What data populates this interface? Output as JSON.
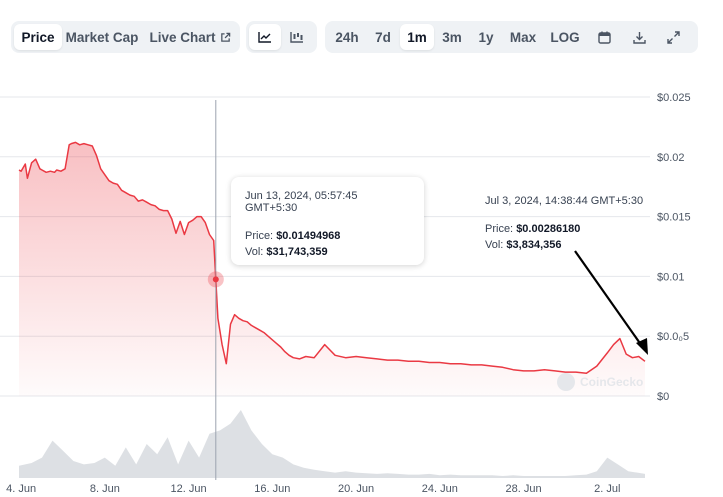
{
  "toolbar": {
    "tabs": [
      {
        "label": "Price",
        "active": true
      },
      {
        "label": "Market Cap",
        "active": false
      },
      {
        "label": "Live Chart",
        "active": false
      }
    ],
    "chart_types": [
      "line-chart-icon",
      "candlestick-icon"
    ],
    "ranges": [
      {
        "label": "24h",
        "active": false
      },
      {
        "label": "7d",
        "active": false
      },
      {
        "label": "1m",
        "active": true
      },
      {
        "label": "3m",
        "active": false
      },
      {
        "label": "1y",
        "active": false
      },
      {
        "label": "Max",
        "active": false
      },
      {
        "label": "LOG",
        "active": false
      }
    ],
    "tools": [
      "calendar-icon",
      "download-icon",
      "fullscreen-icon"
    ]
  },
  "tooltip_main": {
    "date": "Jun 13, 2024, 05:57:45 GMT+5:30",
    "price_label": "Price:",
    "price": "$0.01494968",
    "vol_label": "Vol:",
    "vol": "$31,743,359"
  },
  "tooltip_second": {
    "date": "Jul 3, 2024, 14:38:44 GMT+5:30",
    "price_label": "Price:",
    "price": "$0.00286180",
    "vol_label": "Vol:",
    "vol": "$3,834,356"
  },
  "watermark": "CoinGecko",
  "colors": {
    "line": "#ea3943",
    "volume": "#d1d5db",
    "accent_text": "#111827"
  },
  "chart_data": {
    "type": "area",
    "x_unit": "days since Jun 4, 2024",
    "y_ticks": [
      "$0",
      "$0.0₀5",
      "$0.01",
      "$0.015",
      "$0.02",
      "$0.025"
    ],
    "y_tick_values": [
      0,
      0.005,
      0.01,
      0.015,
      0.02,
      0.025
    ],
    "ylim": [
      0,
      0.025
    ],
    "x_ticks": [
      "4. Jun",
      "8. Jun",
      "12. Jun",
      "16. Jun",
      "20. Jun",
      "24. Jun",
      "28. Jun",
      "2. Jul"
    ],
    "x_tick_values": [
      0,
      4,
      8,
      12,
      16,
      20,
      24,
      28
    ],
    "xlim": [
      -0.1,
      29.8
    ],
    "grid": true,
    "legend": "none",
    "series": [
      {
        "name": "Price",
        "x": [
          -0.1,
          0.0,
          0.2,
          0.3,
          0.5,
          0.7,
          0.9,
          1.0,
          1.2,
          1.4,
          1.6,
          1.7,
          1.9,
          2.1,
          2.3,
          2.4,
          2.6,
          2.8,
          3.0,
          3.2,
          3.4,
          3.6,
          3.8,
          4.0,
          4.2,
          4.4,
          4.6,
          4.8,
          5.0,
          5.2,
          5.4,
          5.6,
          5.8,
          6.0,
          6.2,
          6.4,
          6.6,
          6.8,
          7.0,
          7.2,
          7.4,
          7.6,
          7.8,
          8.0,
          8.2,
          8.4,
          8.6,
          8.8,
          9.0,
          9.2,
          9.4,
          9.6,
          9.8,
          10.0,
          10.2,
          10.4,
          10.6,
          10.8,
          11.0,
          11.2,
          11.4,
          11.6,
          11.8,
          12.0,
          12.2,
          12.4,
          12.6,
          12.8,
          13.0,
          13.3,
          13.6,
          14.0,
          14.5,
          15.0,
          15.5,
          16.0,
          16.5,
          17.0,
          17.5,
          18.0,
          18.5,
          19.0,
          19.5,
          20.0,
          20.5,
          21.0,
          21.5,
          22.0,
          22.5,
          23.0,
          23.5,
          24.0,
          24.5,
          25.0,
          25.5,
          26.0,
          26.5,
          27.0,
          27.5,
          28.0,
          28.3,
          28.6,
          28.9,
          29.2,
          29.5,
          29.8
        ],
        "y": [
          0.0189,
          0.0188,
          0.0194,
          0.0182,
          0.0195,
          0.0198,
          0.019,
          0.0189,
          0.0187,
          0.0188,
          0.0187,
          0.0189,
          0.0188,
          0.019,
          0.021,
          0.0211,
          0.0212,
          0.021,
          0.0211,
          0.021,
          0.0209,
          0.0201,
          0.019,
          0.0185,
          0.018,
          0.0178,
          0.0177,
          0.0172,
          0.017,
          0.0168,
          0.0167,
          0.0163,
          0.0164,
          0.0162,
          0.016,
          0.0159,
          0.0156,
          0.0155,
          0.0155,
          0.0148,
          0.0136,
          0.0146,
          0.0135,
          0.0145,
          0.0147,
          0.015,
          0.015,
          0.0145,
          0.0135,
          0.013,
          0.0065,
          0.0043,
          0.0027,
          0.006,
          0.0068,
          0.0065,
          0.0063,
          0.0062,
          0.0059,
          0.0057,
          0.0055,
          0.0053,
          0.005,
          0.0047,
          0.0044,
          0.0041,
          0.0037,
          0.0034,
          0.0032,
          0.0031,
          0.0033,
          0.0032,
          0.0043,
          0.0034,
          0.0032,
          0.0033,
          0.0032,
          0.0031,
          0.003,
          0.003,
          0.0029,
          0.0029,
          0.0028,
          0.0028,
          0.0027,
          0.0027,
          0.0026,
          0.0026,
          0.0025,
          0.0024,
          0.0022,
          0.0021,
          0.0021,
          0.0022,
          0.0021,
          0.002,
          0.002,
          0.0019,
          0.0025,
          0.0036,
          0.0043,
          0.0048,
          0.0035,
          0.0032,
          0.0033,
          0.0029
        ]
      },
      {
        "name": "Vol",
        "x": [
          -0.1,
          0.5,
          1.0,
          1.5,
          2.0,
          2.5,
          3.0,
          3.5,
          4.0,
          4.5,
          5.0,
          5.5,
          6.0,
          6.5,
          7.0,
          7.5,
          8.0,
          8.5,
          9.0,
          9.5,
          10.0,
          10.5,
          11.0,
          11.5,
          12.0,
          12.5,
          13.0,
          13.5,
          14.0,
          14.5,
          15.0,
          15.5,
          16.0,
          16.5,
          17.0,
          17.5,
          18.0,
          18.5,
          19.0,
          19.5,
          20.0,
          20.5,
          21.0,
          21.5,
          22.0,
          22.5,
          23.0,
          23.5,
          24.0,
          24.5,
          25.0,
          25.5,
          26.0,
          26.5,
          27.0,
          27.5,
          28.0,
          28.5,
          29.0,
          29.8
        ],
        "y": [
          0.18,
          0.22,
          0.3,
          0.55,
          0.4,
          0.25,
          0.2,
          0.22,
          0.3,
          0.18,
          0.45,
          0.2,
          0.5,
          0.35,
          0.6,
          0.2,
          0.55,
          0.3,
          0.65,
          0.7,
          0.8,
          1.0,
          0.7,
          0.5,
          0.35,
          0.3,
          0.2,
          0.15,
          0.12,
          0.1,
          0.08,
          0.1,
          0.08,
          0.07,
          0.06,
          0.07,
          0.06,
          0.05,
          0.05,
          0.06,
          0.04,
          0.05,
          0.04,
          0.04,
          0.04,
          0.04,
          0.03,
          0.04,
          0.03,
          0.03,
          0.03,
          0.03,
          0.03,
          0.04,
          0.05,
          0.1,
          0.3,
          0.2,
          0.1,
          0.06
        ]
      }
    ],
    "hover_x": 9.3
  }
}
